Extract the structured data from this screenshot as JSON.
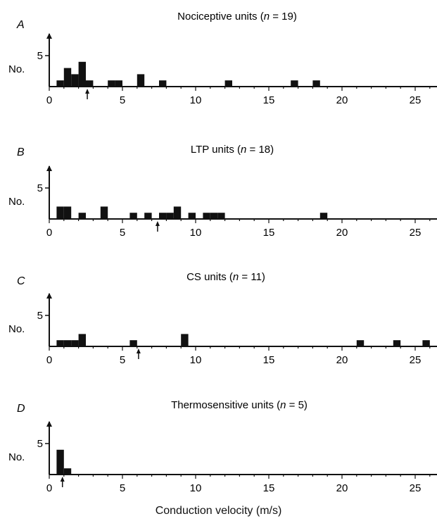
{
  "figure": {
    "xlabel": "Conduction velocity (m/s)"
  },
  "chart_data": [
    {
      "type": "bar",
      "panel": "A",
      "title": "Nociceptive units (n = 19)",
      "title_parts": [
        "Nociceptive units (",
        "n",
        " = 19)"
      ],
      "ylabel": "No.",
      "xlabel": "",
      "xlim": [
        0,
        26.5
      ],
      "ylim": [
        0,
        5
      ],
      "x_ticks": [
        0,
        5,
        10,
        15,
        20,
        25
      ],
      "y_ticks": [
        5
      ],
      "bin_width": 0.5,
      "bins": [
        {
          "x": 0.5,
          "count": 1
        },
        {
          "x": 1.0,
          "count": 3
        },
        {
          "x": 1.5,
          "count": 2
        },
        {
          "x": 2.0,
          "count": 4
        },
        {
          "x": 2.5,
          "count": 1
        },
        {
          "x": 4.0,
          "count": 1
        },
        {
          "x": 4.5,
          "count": 1
        },
        {
          "x": 6.0,
          "count": 2
        },
        {
          "x": 7.5,
          "count": 1
        },
        {
          "x": 12.0,
          "count": 1
        },
        {
          "x": 16.5,
          "count": 1
        },
        {
          "x": 18.0,
          "count": 1
        }
      ],
      "arrow_x": 2.6
    },
    {
      "type": "bar",
      "panel": "B",
      "title": "LTP units (n = 18)",
      "title_parts": [
        "LTP units (",
        "n",
        " = 18)"
      ],
      "ylabel": "No.",
      "xlabel": "",
      "xlim": [
        0,
        26.5
      ],
      "ylim": [
        0,
        5
      ],
      "x_ticks": [
        0,
        5,
        10,
        15,
        20,
        25
      ],
      "y_ticks": [
        5
      ],
      "bin_width": 0.5,
      "bins": [
        {
          "x": 0.5,
          "count": 2
        },
        {
          "x": 1.0,
          "count": 2
        },
        {
          "x": 2.0,
          "count": 1
        },
        {
          "x": 3.5,
          "count": 2
        },
        {
          "x": 5.5,
          "count": 1
        },
        {
          "x": 6.5,
          "count": 1
        },
        {
          "x": 7.5,
          "count": 1
        },
        {
          "x": 8.0,
          "count": 1
        },
        {
          "x": 8.5,
          "count": 2
        },
        {
          "x": 9.5,
          "count": 1
        },
        {
          "x": 10.5,
          "count": 1
        },
        {
          "x": 11.0,
          "count": 1
        },
        {
          "x": 11.5,
          "count": 1
        },
        {
          "x": 18.5,
          "count": 1
        }
      ],
      "arrow_x": 7.4
    },
    {
      "type": "bar",
      "panel": "C",
      "title": "CS units (n = 11)",
      "title_parts": [
        "CS units (",
        "n",
        " = 11)"
      ],
      "ylabel": "No.",
      "xlabel": "",
      "xlim": [
        0,
        26.5
      ],
      "ylim": [
        0,
        5
      ],
      "x_ticks": [
        0,
        5,
        10,
        15,
        20,
        25
      ],
      "y_ticks": [
        5
      ],
      "bin_width": 0.5,
      "bins": [
        {
          "x": 0.5,
          "count": 1
        },
        {
          "x": 1.0,
          "count": 1
        },
        {
          "x": 1.5,
          "count": 1
        },
        {
          "x": 2.0,
          "count": 2
        },
        {
          "x": 5.5,
          "count": 1
        },
        {
          "x": 9.0,
          "count": 2
        },
        {
          "x": 21.0,
          "count": 1
        },
        {
          "x": 23.5,
          "count": 1
        },
        {
          "x": 25.5,
          "count": 1
        }
      ],
      "arrow_x": 6.1
    },
    {
      "type": "bar",
      "panel": "D",
      "title": "Thermosensitive units (n = 5)",
      "title_parts": [
        "Thermosensitive units (",
        "n",
        " = 5)"
      ],
      "ylabel": "No.",
      "xlabel": "",
      "xlim": [
        0,
        26.5
      ],
      "ylim": [
        0,
        5
      ],
      "x_ticks": [
        0,
        5,
        10,
        15,
        20,
        25
      ],
      "y_ticks": [
        5
      ],
      "bin_width": 0.5,
      "bins": [
        {
          "x": 0.5,
          "count": 4
        },
        {
          "x": 1.0,
          "count": 1
        }
      ],
      "arrow_x": 0.9
    }
  ]
}
